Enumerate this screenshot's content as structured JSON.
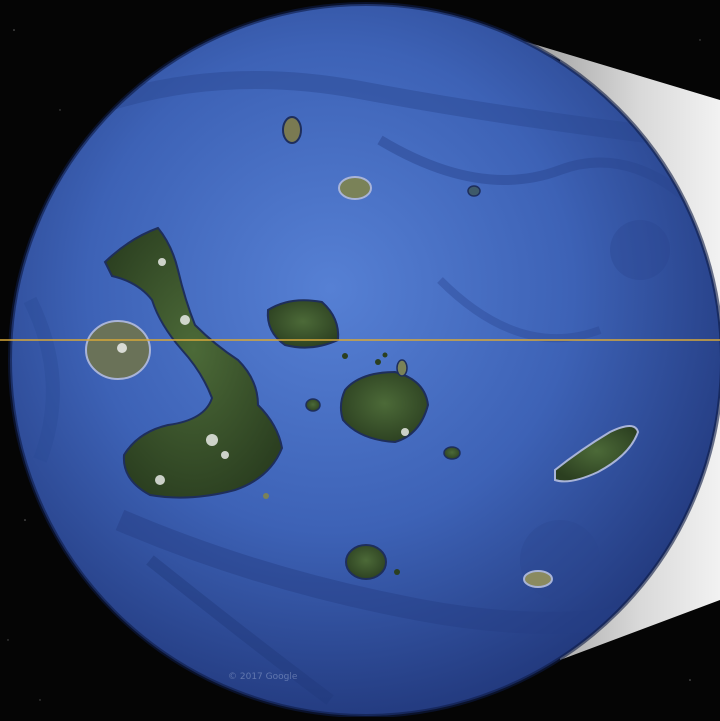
{
  "map": {
    "type": "satellite-globe-inset",
    "region_features": [
      "archipelago",
      "ocean-floor-relief",
      "equator-line"
    ],
    "colors": {
      "space": "#050505",
      "ocean_light": "#4a73c7",
      "ocean_dark": "#1a2f6e",
      "land": "#3d5a2e",
      "land_dark": "#26381c",
      "equator": "#d8a838",
      "inset_panel": "#c8c8c8"
    },
    "attribution": "© 2017 Google"
  }
}
